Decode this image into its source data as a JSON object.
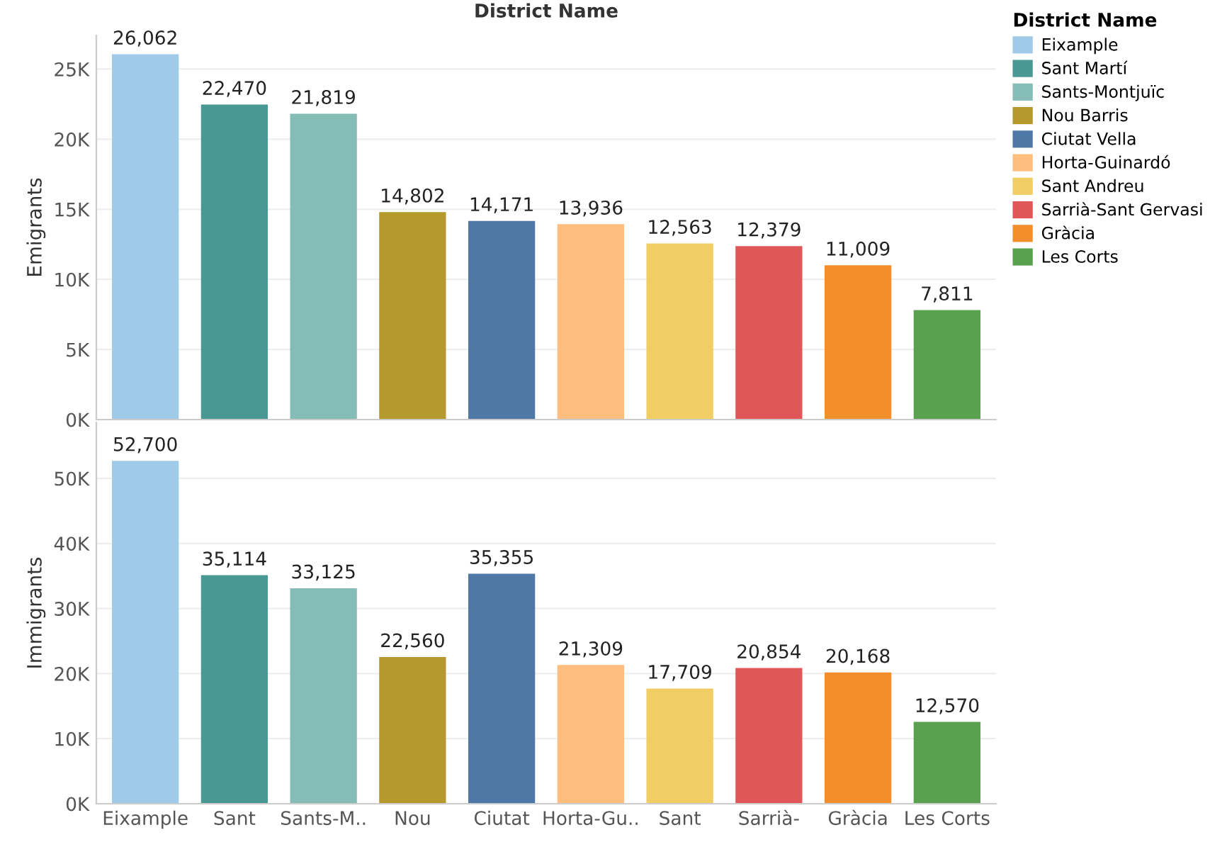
{
  "chart_data": [
    {
      "type": "bar",
      "title": "District Name",
      "ylabel": "Emigrants",
      "legend_title": "District Name",
      "legend": "top right",
      "grid": "y",
      "tick_labels": "y",
      "categories": [
        null,
        null,
        null,
        null,
        null,
        null,
        null,
        null,
        null,
        null
      ],
      "series": [
        {
          "name": "Eixample",
          "color": "#a0cbe8",
          "values": [
            26062,
            null,
            null,
            null,
            null,
            null,
            null,
            null,
            null,
            null
          ],
          "value_labels": [
            "26,062",
            null,
            null,
            null,
            null,
            null,
            null,
            null,
            null,
            null
          ]
        },
        {
          "name": "Sant Martí",
          "color": "#499894",
          "values": [
            null,
            22470,
            null,
            null,
            null,
            null,
            null,
            null,
            null,
            null
          ],
          "value_labels": [
            null,
            "22,470",
            null,
            null,
            null,
            null,
            null,
            null,
            null,
            null
          ]
        },
        {
          "name": "Sants-Montjuïc",
          "color": "#86bcb6",
          "values": [
            null,
            null,
            21819,
            null,
            null,
            null,
            null,
            null,
            null,
            null
          ],
          "value_labels": [
            null,
            null,
            "21,819",
            null,
            null,
            null,
            null,
            null,
            null,
            null
          ]
        },
        {
          "name": "Nou Barris",
          "color": "#b6992d",
          "values": [
            null,
            null,
            null,
            14802,
            null,
            null,
            null,
            null,
            null,
            null
          ],
          "value_labels": [
            null,
            null,
            null,
            "14,802",
            null,
            null,
            null,
            null,
            null,
            null
          ]
        },
        {
          "name": "Ciutat Vella",
          "color": "#4e79a7",
          "values": [
            null,
            null,
            null,
            null,
            14171,
            null,
            null,
            null,
            null,
            null
          ],
          "value_labels": [
            null,
            null,
            null,
            null,
            "14,171",
            null,
            null,
            null,
            null,
            null
          ]
        },
        {
          "name": "Horta-Guinardó",
          "color": "#ffbe7d",
          "values": [
            null,
            null,
            null,
            null,
            null,
            13936,
            null,
            null,
            null,
            null
          ],
          "value_labels": [
            null,
            null,
            null,
            null,
            null,
            "13,936",
            null,
            null,
            null,
            null
          ]
        },
        {
          "name": "Sant Andreu",
          "color": "#f1ce63",
          "values": [
            null,
            null,
            null,
            null,
            null,
            null,
            12563,
            null,
            null,
            null
          ],
          "value_labels": [
            null,
            null,
            null,
            null,
            null,
            null,
            "12,563",
            null,
            null,
            null
          ]
        },
        {
          "name": "Sarrià-Sant Gervasi",
          "color": "#e15759",
          "values": [
            null,
            null,
            null,
            null,
            null,
            null,
            null,
            12379,
            null,
            null
          ],
          "value_labels": [
            null,
            null,
            null,
            null,
            null,
            null,
            null,
            "12,379",
            null,
            null
          ]
        },
        {
          "name": "Gràcia",
          "color": "#f28e2b",
          "values": [
            null,
            null,
            null,
            null,
            null,
            null,
            null,
            null,
            11009,
            null
          ],
          "value_labels": [
            null,
            null,
            null,
            null,
            null,
            null,
            null,
            null,
            "11,009",
            null
          ]
        },
        {
          "name": "Les Corts",
          "color": "#59a14f",
          "values": [
            null,
            null,
            null,
            null,
            null,
            null,
            null,
            null,
            null,
            7811
          ],
          "value_labels": [
            null,
            null,
            null,
            null,
            null,
            null,
            null,
            null,
            null,
            "7,811"
          ]
        }
      ],
      "ylim": [
        0,
        27400
      ],
      "yticks": [
        {
          "value": 0,
          "label": "0K"
        },
        {
          "value": 5000,
          "label": "5K"
        },
        {
          "value": 10000,
          "label": "10K"
        },
        {
          "value": 15000,
          "label": "15K"
        },
        {
          "value": 20000,
          "label": "20K"
        },
        {
          "value": 25000,
          "label": "25K"
        }
      ]
    },
    {
      "type": "bar",
      "ylabel": "Immigrants",
      "grid": "y",
      "categories": [
        "Eixample",
        "Sant",
        "Sants-M..",
        "Nou",
        "Ciutat",
        "Horta-Gu..",
        "Sant",
        "Sarrià-",
        "Gràcia",
        "Les Corts"
      ],
      "series": [
        {
          "color": "#a0cbe8",
          "values": [
            52700,
            null,
            null,
            null,
            null,
            null,
            null,
            null,
            null,
            null
          ],
          "value_labels": [
            "52,700",
            null,
            null,
            null,
            null,
            null,
            null,
            null,
            null,
            null
          ]
        },
        {
          "color": "#499894",
          "values": [
            null,
            35114,
            null,
            null,
            null,
            null,
            null,
            null,
            null,
            null
          ],
          "value_labels": [
            null,
            "35,114",
            null,
            null,
            null,
            null,
            null,
            null,
            null,
            null
          ]
        },
        {
          "color": "#86bcb6",
          "values": [
            null,
            null,
            33125,
            null,
            null,
            null,
            null,
            null,
            null,
            null
          ],
          "value_labels": [
            null,
            null,
            "33,125",
            null,
            null,
            null,
            null,
            null,
            null,
            null
          ]
        },
        {
          "color": "#b6992d",
          "values": [
            null,
            null,
            null,
            22560,
            null,
            null,
            null,
            null,
            null,
            null
          ],
          "value_labels": [
            null,
            null,
            null,
            "22,560",
            null,
            null,
            null,
            null,
            null,
            null
          ]
        },
        {
          "color": "#4e79a7",
          "values": [
            null,
            null,
            null,
            null,
            35355,
            null,
            null,
            null,
            null,
            null
          ],
          "value_labels": [
            null,
            null,
            null,
            null,
            "35,355",
            null,
            null,
            null,
            null,
            null
          ]
        },
        {
          "color": "#ffbe7d",
          "values": [
            null,
            null,
            null,
            null,
            null,
            21309,
            null,
            null,
            null,
            null
          ],
          "value_labels": [
            null,
            null,
            null,
            null,
            null,
            "21,309",
            null,
            null,
            null,
            null
          ]
        },
        {
          "color": "#f1ce63",
          "values": [
            null,
            null,
            null,
            null,
            null,
            null,
            17709,
            null,
            null,
            null
          ],
          "value_labels": [
            null,
            null,
            null,
            null,
            null,
            null,
            "17,709",
            null,
            null,
            null
          ]
        },
        {
          "color": "#e15759",
          "values": [
            null,
            null,
            null,
            null,
            null,
            null,
            null,
            20854,
            null,
            null
          ],
          "value_labels": [
            null,
            null,
            null,
            null,
            null,
            null,
            null,
            "20,854",
            null,
            null
          ]
        },
        {
          "color": "#f28e2b",
          "values": [
            null,
            null,
            null,
            null,
            null,
            null,
            null,
            null,
            20168,
            null
          ],
          "value_labels": [
            null,
            null,
            null,
            null,
            null,
            null,
            null,
            null,
            "20,168",
            null
          ]
        },
        {
          "color": "#59a14f",
          "values": [
            null,
            null,
            null,
            null,
            null,
            null,
            null,
            null,
            null,
            12570
          ],
          "value_labels": [
            null,
            null,
            null,
            null,
            null,
            null,
            null,
            null,
            null,
            "12,570"
          ]
        }
      ],
      "ylim": [
        0,
        58600
      ],
      "yticks": [
        {
          "value": 0,
          "label": "0K"
        },
        {
          "value": 10000,
          "label": "10K"
        },
        {
          "value": 20000,
          "label": "20K"
        },
        {
          "value": 30000,
          "label": "30K"
        },
        {
          "value": 40000,
          "label": "40K"
        },
        {
          "value": 50000,
          "label": "50K"
        }
      ]
    }
  ]
}
